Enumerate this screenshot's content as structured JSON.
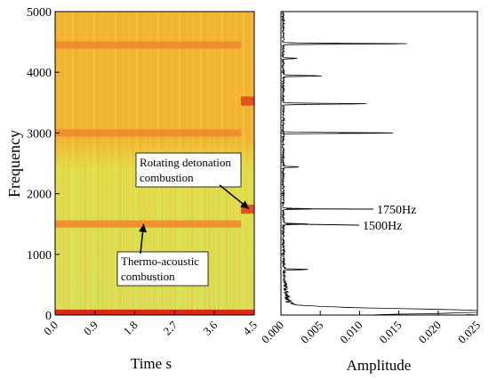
{
  "figure": {
    "spectrogram": {
      "type": "heatmap",
      "xlabel": "Time s",
      "ylabel": "Frequency",
      "xlim": [
        0.0,
        4.5
      ],
      "ylim": [
        0,
        5000
      ],
      "x_ticks": [
        "0.0",
        "0.9",
        "1.8",
        "2.7",
        "3.6",
        "4.5"
      ],
      "y_ticks": [
        "0",
        "1000",
        "2000",
        "3000",
        "4000",
        "5000"
      ],
      "colors": {
        "background": "#f2b533",
        "low_region": "#dfe14a",
        "band_medium": "#ee8a2c",
        "band_strong": "#e4501f",
        "band_peak": "#d82a1a"
      },
      "bands": [
        {
          "freq_start": 4390,
          "freq_end": 4510,
          "t_start": 0.0,
          "t_end": 4.2,
          "level": "medium"
        },
        {
          "freq_start": 2940,
          "freq_end": 3060,
          "t_start": 0.0,
          "t_end": 4.2,
          "level": "medium"
        },
        {
          "freq_start": 1440,
          "freq_end": 1560,
          "t_start": 0.0,
          "t_end": 4.2,
          "level": "medium"
        },
        {
          "freq_start": 3450,
          "freq_end": 3600,
          "t_start": 4.2,
          "t_end": 4.5,
          "level": "strong"
        },
        {
          "freq_start": 1670,
          "freq_end": 1820,
          "t_start": 4.2,
          "t_end": 4.5,
          "level": "strong"
        },
        {
          "freq_start": 0,
          "freq_end": 90,
          "t_start": 0.0,
          "t_end": 4.5,
          "level": "peak"
        }
      ],
      "annotations": [
        {
          "id": "rotating",
          "lines": [
            "Rotating detonation",
            "combustion"
          ],
          "target_t": 4.38,
          "target_f": 1750
        },
        {
          "id": "thermo",
          "lines": [
            "Thermo-acoustic",
            "combustion"
          ],
          "target_t": 2.0,
          "target_f": 1500
        }
      ]
    },
    "spectrum": {
      "type": "line",
      "xlabel": "Amplitude",
      "xlim": [
        0.0,
        0.025
      ],
      "ylim": [
        0,
        5000
      ],
      "x_ticks": [
        "0.000",
        "0.005",
        "0.010",
        "0.015",
        "0.020",
        "0.025"
      ],
      "peaks": [
        {
          "freq": 4470,
          "amp": 0.0166
        },
        {
          "freq": 3000,
          "amp": 0.0146
        },
        {
          "freq": 3480,
          "amp": 0.011
        },
        {
          "freq": 3940,
          "amp": 0.005
        },
        {
          "freq": 1750,
          "amp": 0.0038
        },
        {
          "freq": 1500,
          "amp": 0.0032
        },
        {
          "freq": 2440,
          "amp": 0.002
        },
        {
          "freq": 750,
          "amp": 0.003
        },
        {
          "freq": 4230,
          "amp": 0.0018
        },
        {
          "freq": 60,
          "amp": 0.0248
        }
      ],
      "annotations": [
        {
          "label": "1750Hz",
          "freq": 1750
        },
        {
          "label": "1500Hz",
          "freq": 1500
        }
      ]
    }
  }
}
